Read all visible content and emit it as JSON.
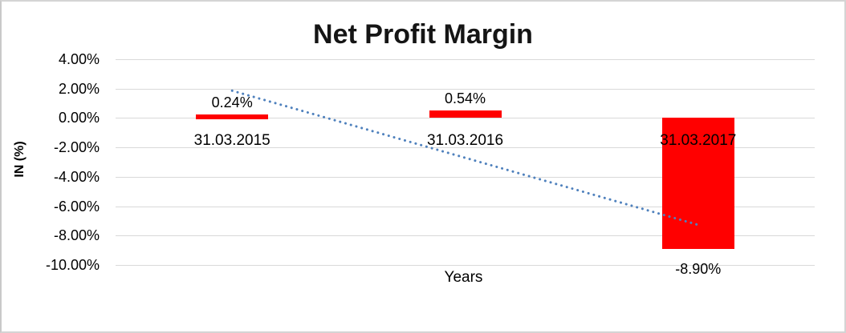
{
  "frame": {
    "background": "#FFFFFF",
    "border_color": "#D4D4D4"
  },
  "chart_data": {
    "type": "bar",
    "title": "Net Profit Margin",
    "xlabel": "Years",
    "ylabel": "IN (%)",
    "categories": [
      "31.03.2015",
      "31.03.2016",
      "31.03.2017"
    ],
    "values": [
      0.24,
      0.54,
      -8.9
    ],
    "data_labels": [
      "0.24%",
      "0.54%",
      "-8.90%"
    ],
    "y_ticks": [
      "4.00%",
      "2.00%",
      "0.00%",
      "-2.00%",
      "-4.00%",
      "-6.00%",
      "-8.00%",
      "-10.00%"
    ],
    "y_tick_values": [
      4,
      2,
      0,
      -2,
      -4,
      -6,
      -8,
      -10
    ],
    "ylim": [
      -10,
      4
    ],
    "grid": true,
    "legend": "none",
    "bar_color": "#FF0000",
    "gridline_color": "#D9D9D9",
    "text_color": "#000000",
    "trendline": {
      "type": "linear",
      "style": "dotted",
      "color": "#4F81BD",
      "start_value": 1.86,
      "end_value": -7.27
    }
  }
}
